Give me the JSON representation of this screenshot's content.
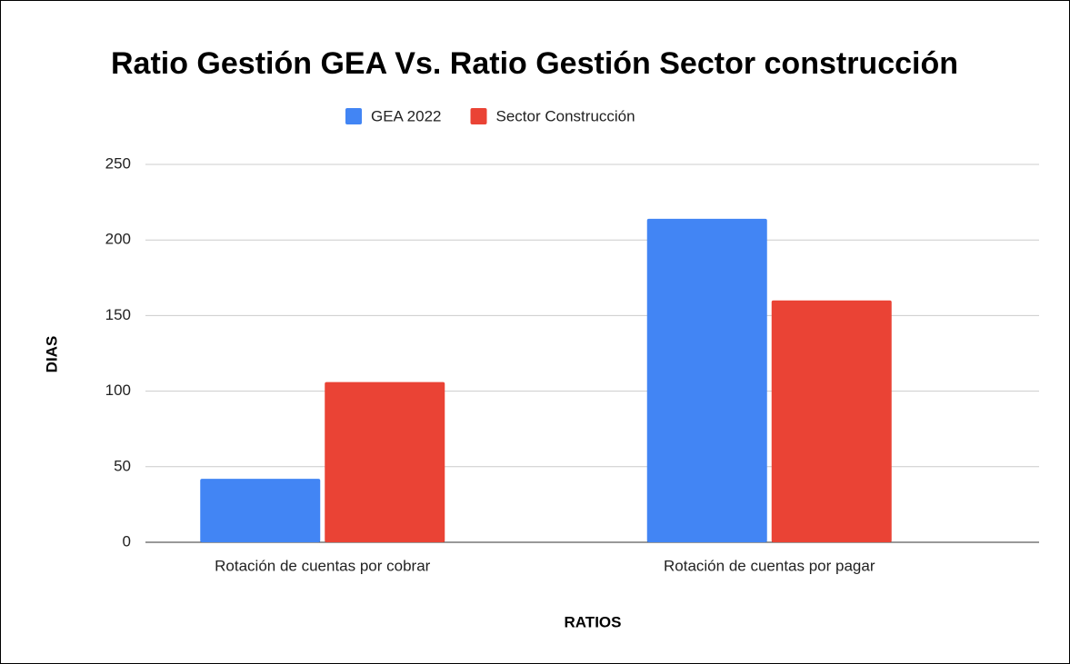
{
  "chart_data": {
    "type": "bar",
    "title": "Ratio Gestión GEA Vs. Ratio Gestión Sector construcción",
    "x_label": "RATIOS",
    "y_label": "DIAS",
    "categories": [
      "Rotación de cuentas por cobrar",
      "Rotación de cuentas por pagar"
    ],
    "series": [
      {
        "name": "GEA 2022",
        "color": "#4285f4",
        "values": [
          42,
          214
        ]
      },
      {
        "name": "Sector Construcción",
        "color": "#ea4335",
        "values": [
          106,
          160
        ]
      }
    ],
    "ylim": [
      0,
      250
    ],
    "yticks": [
      0,
      50,
      100,
      150,
      200,
      250
    ],
    "grid": true,
    "legend": "top"
  }
}
